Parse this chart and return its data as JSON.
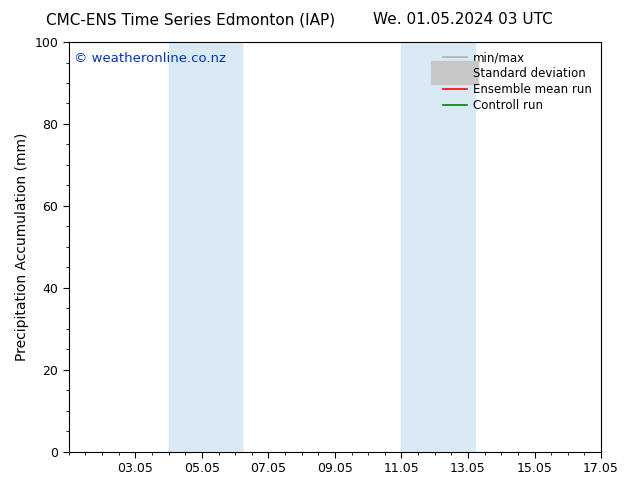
{
  "title_left": "CMC-ENS Time Series Edmonton (IAP)",
  "title_right": "We. 01.05.2024 03 UTC",
  "ylabel": "Precipitation Accumulation (mm)",
  "ylim": [
    0,
    100
  ],
  "yticks": [
    0,
    20,
    40,
    60,
    80,
    100
  ],
  "xtick_labels": [
    "03.05",
    "05.05",
    "07.05",
    "09.05",
    "11.05",
    "13.05",
    "15.05",
    "17.05"
  ],
  "xtick_positions": [
    2,
    4,
    6,
    8,
    10,
    12,
    14,
    16
  ],
  "shaded_regions": [
    {
      "x_start": 3,
      "x_end": 5.2,
      "color": "#daeaf5",
      "alpha": 1.0
    },
    {
      "x_start": 10,
      "x_end": 12.2,
      "color": "#daeaf5",
      "alpha": 1.0
    }
  ],
  "background_color": "#ffffff",
  "plot_bg_color": "#ffffff",
  "legend_entries": [
    {
      "label": "min/max",
      "color": "#b0b0b0",
      "linewidth": 1.2,
      "linestyle": "-",
      "thick": false
    },
    {
      "label": "Standard deviation",
      "color": "#c8c8c8",
      "linewidth": 5,
      "linestyle": "-",
      "thick": true
    },
    {
      "label": "Ensemble mean run",
      "color": "#ff0000",
      "linewidth": 1.2,
      "linestyle": "-",
      "thick": false
    },
    {
      "label": "Controll run",
      "color": "#008000",
      "linewidth": 1.2,
      "linestyle": "-",
      "thick": false
    }
  ],
  "watermark_text": "© weatheronline.co.nz",
  "watermark_color": "#0033cc",
  "watermark_fontsize": 9.5,
  "title_fontsize": 11,
  "axis_label_fontsize": 10,
  "tick_fontsize": 9,
  "legend_fontsize": 8.5,
  "border_color": "#000000",
  "xlim": [
    0,
    16
  ]
}
